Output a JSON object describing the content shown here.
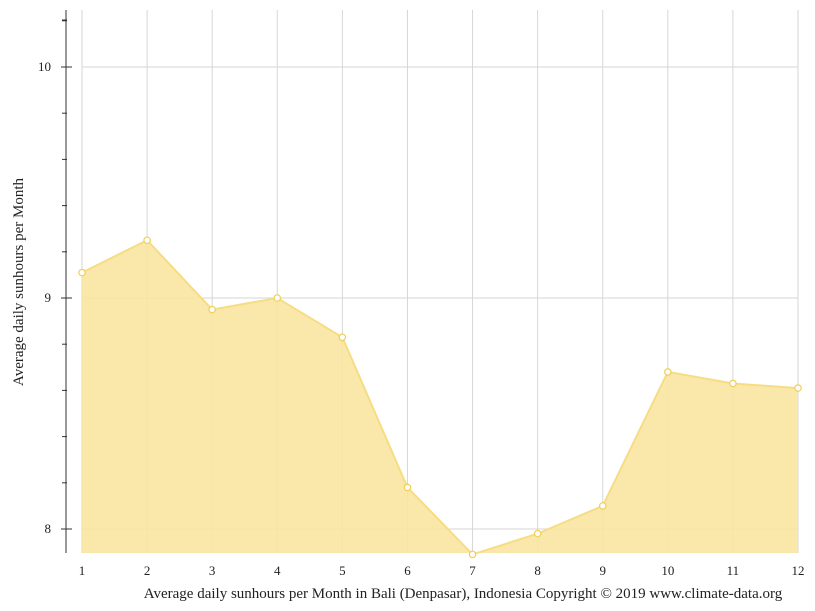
{
  "chart_data": {
    "type": "area",
    "title": "",
    "xlabel": "Average daily sunhours per Month in Bali (Denpasar), Indonesia Copyright © 2019 www.climate-data.org",
    "ylabel": "Average daily sunhours per Month",
    "x": [
      1,
      2,
      3,
      4,
      5,
      6,
      7,
      8,
      9,
      10,
      11,
      12
    ],
    "x_tick_labels": [
      "1",
      "2",
      "3",
      "4",
      "5",
      "6",
      "7",
      "8",
      "9",
      "10",
      "11",
      "12"
    ],
    "y_tick_labels": [
      "8",
      "9",
      "10"
    ],
    "y_ticks": [
      8,
      9,
      10
    ],
    "series": [
      {
        "values": [
          9.11,
          9.25,
          8.95,
          9.0,
          8.83,
          8.18,
          7.89,
          7.98,
          8.1,
          8.68,
          8.63,
          8.61
        ]
      }
    ],
    "xlim": [
      1,
      12
    ],
    "ylim": [
      7.9,
      10.25
    ],
    "grid": true,
    "colors": {
      "fill": "#f8e6a0",
      "line": "#f6dd84",
      "marker_stroke": "#f0cf56",
      "marker_fill": "#ffffff",
      "grid": "#d6d6d6",
      "axis": "#333333"
    }
  }
}
